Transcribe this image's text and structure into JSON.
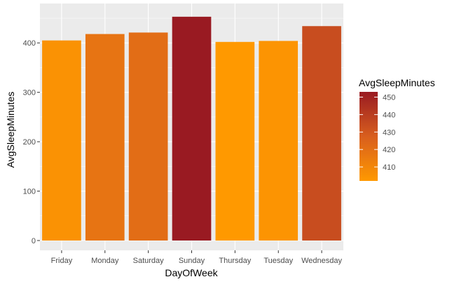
{
  "chart_data": {
    "type": "bar",
    "title": "",
    "xlabel": "DayOfWeek",
    "ylabel": "AvgSleepMinutes",
    "categories": [
      "Friday",
      "Monday",
      "Saturday",
      "Sunday",
      "Thursday",
      "Tuesday",
      "Wednesday"
    ],
    "values": [
      405,
      418,
      421,
      453,
      402,
      404,
      434
    ],
    "ylim": [
      0,
      470
    ],
    "yticks": [
      0,
      100,
      200,
      300,
      400
    ],
    "grid": true,
    "legend": {
      "title": "AvgSleepMinutes",
      "placement": "right",
      "type": "colorbar",
      "range": [
        402,
        453
      ],
      "ticks": [
        410,
        420,
        430,
        440,
        450
      ],
      "color_low": "#FF9900",
      "color_high": "#991A22"
    },
    "colors": {
      "panel_background": "#EBEBEB",
      "gridline": "#FFFFFF"
    }
  }
}
